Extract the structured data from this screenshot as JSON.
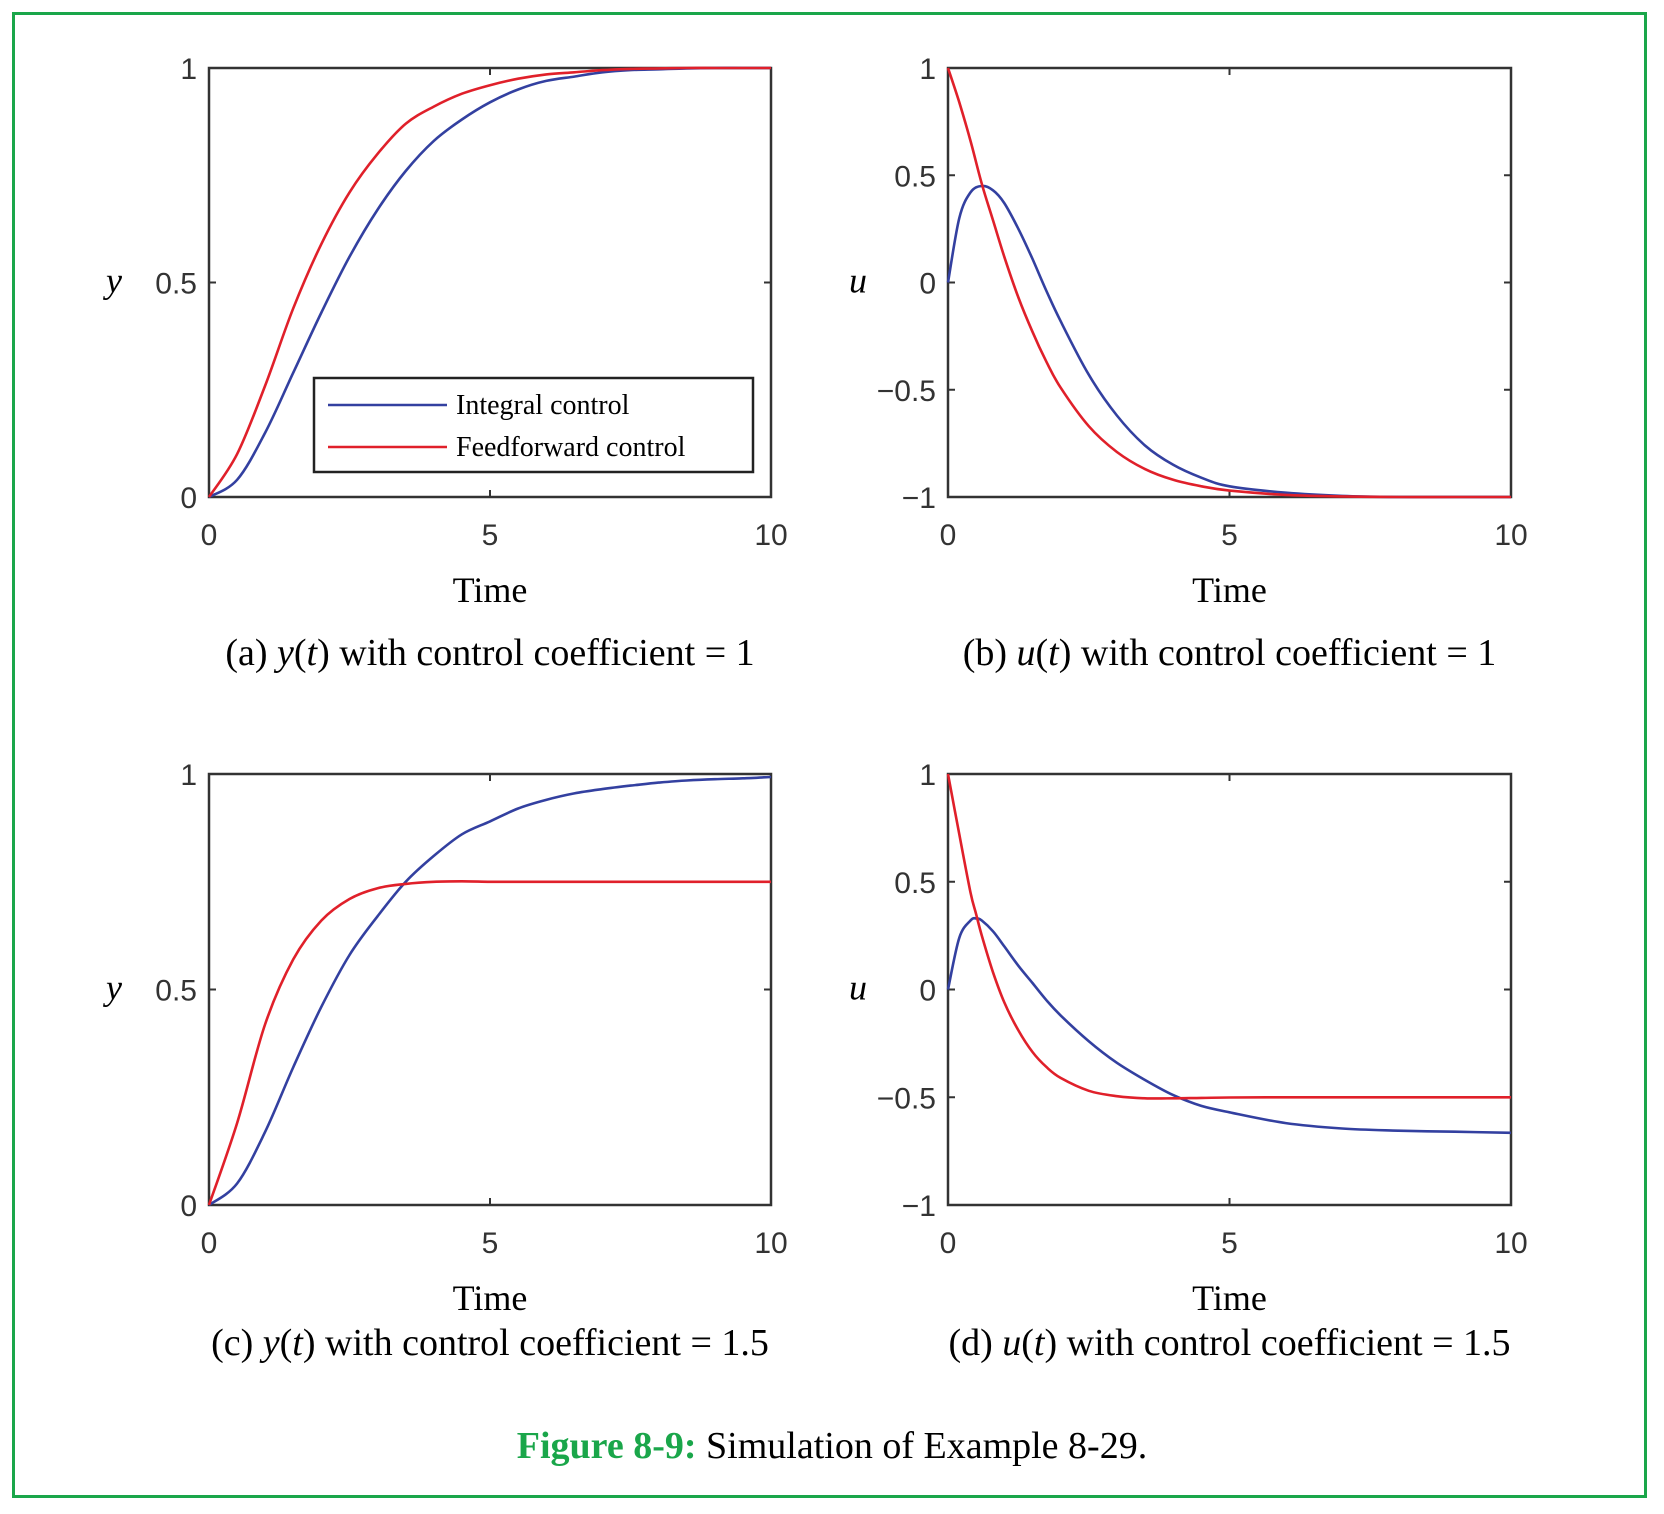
{
  "colors": {
    "integral": "#3340a0",
    "feedforward": "#e0202a",
    "frame": "#1aa64a",
    "axes": "#333333"
  },
  "legend": {
    "items": [
      "Integral control",
      "Feedforward control"
    ],
    "placement": "lower-right",
    "panel": 0
  },
  "figure_caption": {
    "number": "Figure 8-9:",
    "text": "Simulation of Example 8-29."
  },
  "chart_data": [
    {
      "type": "line",
      "caption_tag": "(a)",
      "caption_var": "y",
      "caption_arg": "t",
      "caption_rest": "with control coefficient = 1",
      "xlabel": "Time",
      "ylabel": "y",
      "xlim": [
        0,
        10
      ],
      "ylim": [
        0,
        1
      ],
      "xticks": [
        "0",
        "5",
        "10"
      ],
      "yticks": [
        "0",
        "0.5",
        "1"
      ],
      "x": [
        0,
        0.5,
        1,
        1.5,
        2,
        2.5,
        3,
        3.5,
        4,
        4.5,
        5,
        5.5,
        6,
        6.5,
        7,
        7.5,
        8,
        8.5,
        9,
        9.5,
        10
      ],
      "series": [
        {
          "name": "Integral control",
          "color": "#3340a0",
          "values": [
            0,
            0.04,
            0.15,
            0.29,
            0.43,
            0.56,
            0.67,
            0.76,
            0.83,
            0.88,
            0.92,
            0.95,
            0.97,
            0.98,
            0.99,
            0.995,
            0.997,
            0.999,
            1,
            1,
            1
          ]
        },
        {
          "name": "Feedforward control",
          "color": "#e0202a",
          "values": [
            0,
            0.1,
            0.26,
            0.44,
            0.59,
            0.71,
            0.8,
            0.87,
            0.91,
            0.94,
            0.96,
            0.975,
            0.985,
            0.99,
            0.995,
            0.998,
            0.999,
            1,
            1,
            1,
            1
          ]
        }
      ]
    },
    {
      "type": "line",
      "caption_tag": "(b)",
      "caption_var": "u",
      "caption_arg": "t",
      "caption_rest": "with control coefficient = 1",
      "xlabel": "Time",
      "ylabel": "u",
      "xlim": [
        0,
        10
      ],
      "ylim": [
        -1,
        1
      ],
      "xticks": [
        "0",
        "5",
        "10"
      ],
      "yticks": [
        "−1",
        "−0.5",
        "0",
        "0.5",
        "1"
      ],
      "x": [
        0,
        0.2,
        0.4,
        0.6,
        0.8,
        1,
        1.25,
        1.5,
        1.75,
        2,
        2.5,
        3,
        3.5,
        4,
        4.5,
        5,
        6,
        7,
        8,
        9,
        10
      ],
      "series": [
        {
          "name": "Integral control",
          "color": "#3340a0",
          "values": [
            0,
            0.3,
            0.42,
            0.45,
            0.43,
            0.37,
            0.25,
            0.11,
            -0.04,
            -0.18,
            -0.43,
            -0.62,
            -0.76,
            -0.85,
            -0.91,
            -0.95,
            -0.98,
            -0.995,
            -1,
            -1,
            -1
          ]
        },
        {
          "name": "Feedforward control",
          "color": "#e0202a",
          "values": [
            1,
            0.84,
            0.66,
            0.46,
            0.29,
            0.12,
            -0.07,
            -0.23,
            -0.37,
            -0.49,
            -0.67,
            -0.79,
            -0.87,
            -0.92,
            -0.95,
            -0.97,
            -0.99,
            -0.997,
            -1,
            -1,
            -1
          ]
        }
      ]
    },
    {
      "type": "line",
      "caption_tag": "(c)",
      "caption_var": "y",
      "caption_arg": "t",
      "caption_rest": "with control coefficient = 1.5",
      "xlabel": "Time",
      "ylabel": "y",
      "xlim": [
        0,
        10
      ],
      "ylim": [
        0,
        1
      ],
      "xticks": [
        "0",
        "5",
        "10"
      ],
      "yticks": [
        "0",
        "0.5",
        "1"
      ],
      "x": [
        0,
        0.5,
        1,
        1.5,
        2,
        2.5,
        3,
        3.5,
        4,
        4.5,
        5,
        5.5,
        6,
        6.5,
        7,
        7.5,
        8,
        8.5,
        9,
        9.5,
        10
      ],
      "series": [
        {
          "name": "Integral control",
          "color": "#3340a0",
          "values": [
            0,
            0.05,
            0.17,
            0.32,
            0.46,
            0.58,
            0.67,
            0.75,
            0.81,
            0.86,
            0.89,
            0.92,
            0.94,
            0.955,
            0.965,
            0.973,
            0.98,
            0.985,
            0.988,
            0.99,
            0.993
          ]
        },
        {
          "name": "Feedforward control",
          "color": "#e0202a",
          "values": [
            0,
            0.19,
            0.42,
            0.57,
            0.66,
            0.71,
            0.735,
            0.745,
            0.75,
            0.751,
            0.75,
            0.75,
            0.75,
            0.75,
            0.75,
            0.75,
            0.75,
            0.75,
            0.75,
            0.75,
            0.75
          ]
        }
      ]
    },
    {
      "type": "line",
      "caption_tag": "(d)",
      "caption_var": "u",
      "caption_arg": "t",
      "caption_rest": "with control coefficient = 1.5",
      "xlabel": "Time",
      "ylabel": "u",
      "xlim": [
        0,
        10
      ],
      "ylim": [
        -1,
        1
      ],
      "xticks": [
        "0",
        "5",
        "10"
      ],
      "yticks": [
        "−1",
        "−0.5",
        "0",
        "0.5",
        "1"
      ],
      "x": [
        0,
        0.2,
        0.4,
        0.5,
        0.6,
        0.8,
        1,
        1.25,
        1.5,
        1.75,
        2,
        2.5,
        3,
        3.5,
        4,
        4.5,
        5,
        6,
        7,
        8,
        9,
        10
      ],
      "series": [
        {
          "name": "Integral control",
          "color": "#3340a0",
          "values": [
            0,
            0.24,
            0.32,
            0.33,
            0.32,
            0.27,
            0.2,
            0.11,
            0.03,
            -0.05,
            -0.12,
            -0.24,
            -0.34,
            -0.42,
            -0.49,
            -0.54,
            -0.57,
            -0.62,
            -0.645,
            -0.655,
            -0.66,
            -0.665
          ]
        },
        {
          "name": "Feedforward control",
          "color": "#e0202a",
          "values": [
            1,
            0.72,
            0.45,
            0.35,
            0.25,
            0.08,
            -0.06,
            -0.19,
            -0.29,
            -0.36,
            -0.41,
            -0.47,
            -0.495,
            -0.505,
            -0.505,
            -0.503,
            -0.501,
            -0.5,
            -0.5,
            -0.5,
            -0.5,
            -0.5
          ]
        }
      ]
    }
  ]
}
